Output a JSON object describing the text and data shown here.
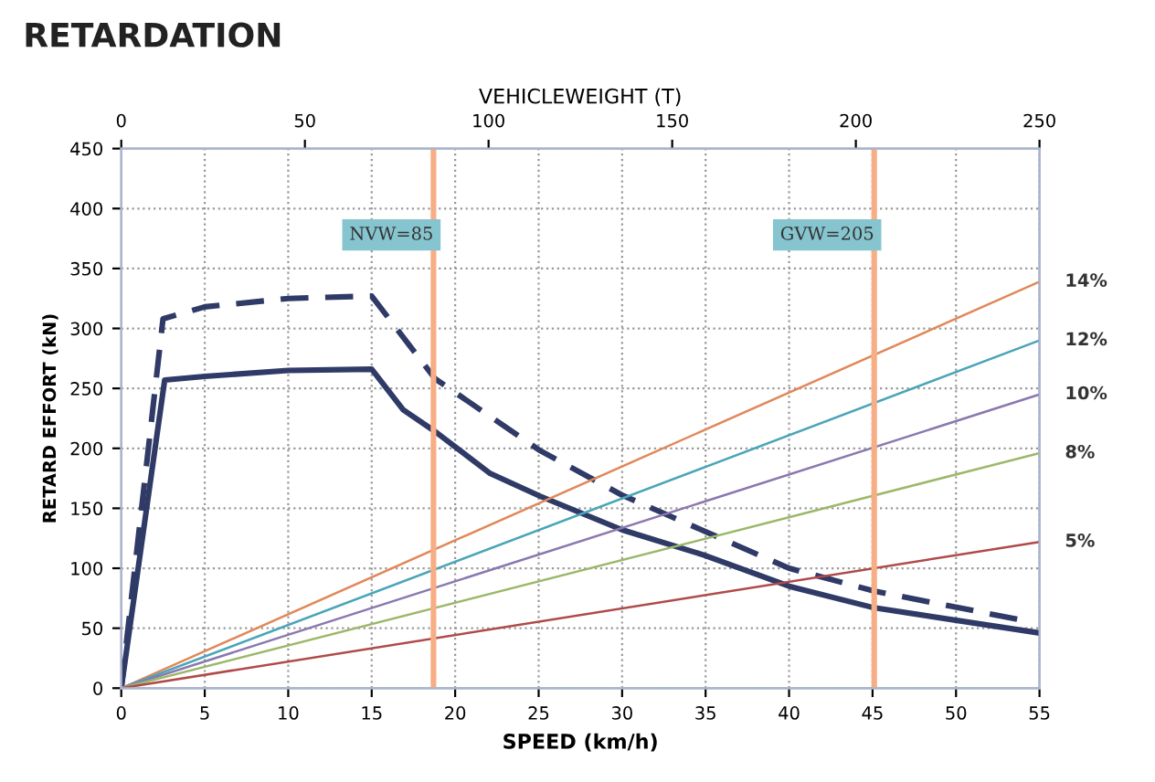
{
  "chart_data": {
    "type": "line",
    "title": "RETARDATION",
    "xlabel": "SPEED (km/h)",
    "x2label": "VEHICLEWEIGHT (T)",
    "ylabel": "RETARD EFFORT (kN)",
    "xlim": [
      0,
      55
    ],
    "xticks": [
      0,
      5,
      10,
      15,
      20,
      25,
      30,
      35,
      40,
      45,
      50,
      55
    ],
    "x2lim": [
      0,
      250
    ],
    "x2ticks": [
      0,
      50,
      100,
      150,
      200,
      250
    ],
    "ylim": [
      0,
      450
    ],
    "yticks": [
      0,
      50,
      100,
      150,
      200,
      250,
      300,
      350,
      400,
      450
    ],
    "grid": true,
    "marker": "none",
    "series": [
      {
        "color": "#2f3a66",
        "line_style": "solid",
        "x": [
          0,
          2.6,
          5,
          10,
          15,
          16.9,
          18.8,
          22.1,
          25.1,
          30,
          34.9,
          40,
          45.1,
          55
        ],
        "values": [
          0,
          257,
          260,
          265,
          266,
          232,
          214,
          179,
          160,
          132,
          111,
          85,
          67,
          46
        ]
      },
      {
        "color": "#2f3a66",
        "line_style": "dashed",
        "x": [
          0,
          2.5,
          5,
          10,
          15,
          18.8,
          25.1,
          30,
          40,
          45.1,
          54.2
        ],
        "values": [
          0,
          308,
          318,
          325,
          327,
          258,
          198,
          161,
          100,
          81,
          56
        ]
      },
      {
        "name": "14%",
        "color": "#e0885a",
        "line_style": "solid",
        "x": [
          0,
          55
        ],
        "values": [
          0,
          339
        ]
      },
      {
        "name": "12%",
        "color": "#4aa5b8",
        "line_style": "solid",
        "x": [
          0,
          55
        ],
        "values": [
          0,
          290
        ]
      },
      {
        "name": "10%",
        "color": "#8a78b0",
        "line_style": "solid",
        "x": [
          0,
          55
        ],
        "values": [
          0,
          245
        ]
      },
      {
        "name": "8%",
        "color": "#9bb86a",
        "line_style": "solid",
        "x": [
          0,
          55
        ],
        "values": [
          0,
          196
        ]
      },
      {
        "name": "5%",
        "color": "#b04a4a",
        "line_style": "solid",
        "x": [
          0,
          55
        ],
        "values": [
          0,
          122
        ]
      }
    ],
    "ref_lines": [
      {
        "axis": "x2",
        "value": 85,
        "label": "NVW=85",
        "color": "#f7ae84"
      },
      {
        "axis": "x2",
        "value": 205,
        "label": "GVW=205",
        "color": "#f7ae84"
      }
    ]
  }
}
